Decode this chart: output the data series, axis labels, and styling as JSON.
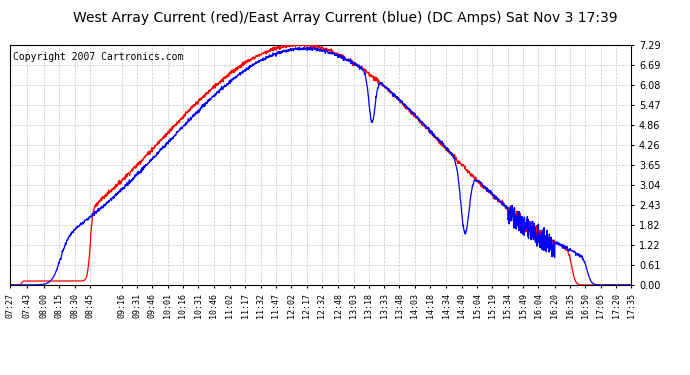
{
  "title": "West Array Current (red)/East Array Current (blue) (DC Amps) Sat Nov 3 17:39",
  "copyright": "Copyright 2007 Cartronics.com",
  "yticks": [
    0.0,
    0.61,
    1.22,
    1.82,
    2.43,
    3.04,
    3.65,
    4.26,
    4.86,
    5.47,
    6.08,
    6.69,
    7.29
  ],
  "ylim": [
    0.0,
    7.29
  ],
  "bg_color": "#ffffff",
  "plot_bg_color": "#ffffff",
  "grid_color": "#c8c8c8",
  "red_color": "#ff0000",
  "blue_color": "#0000ff",
  "title_fontsize": 10,
  "copyright_fontsize": 7,
  "xtick_fontsize": 6,
  "ytick_fontsize": 7,
  "xtick_labels": [
    "07:27",
    "07:43",
    "08:00",
    "08:15",
    "08:30",
    "08:45",
    "09:16",
    "09:31",
    "09:46",
    "10:01",
    "10:16",
    "10:31",
    "10:46",
    "11:02",
    "11:17",
    "11:32",
    "11:47",
    "12:02",
    "12:17",
    "12:32",
    "12:48",
    "13:03",
    "13:18",
    "13:33",
    "13:48",
    "14:03",
    "14:18",
    "14:34",
    "14:49",
    "15:04",
    "15:19",
    "15:34",
    "15:49",
    "16:04",
    "16:20",
    "16:35",
    "16:50",
    "17:05",
    "17:20",
    "17:35"
  ]
}
